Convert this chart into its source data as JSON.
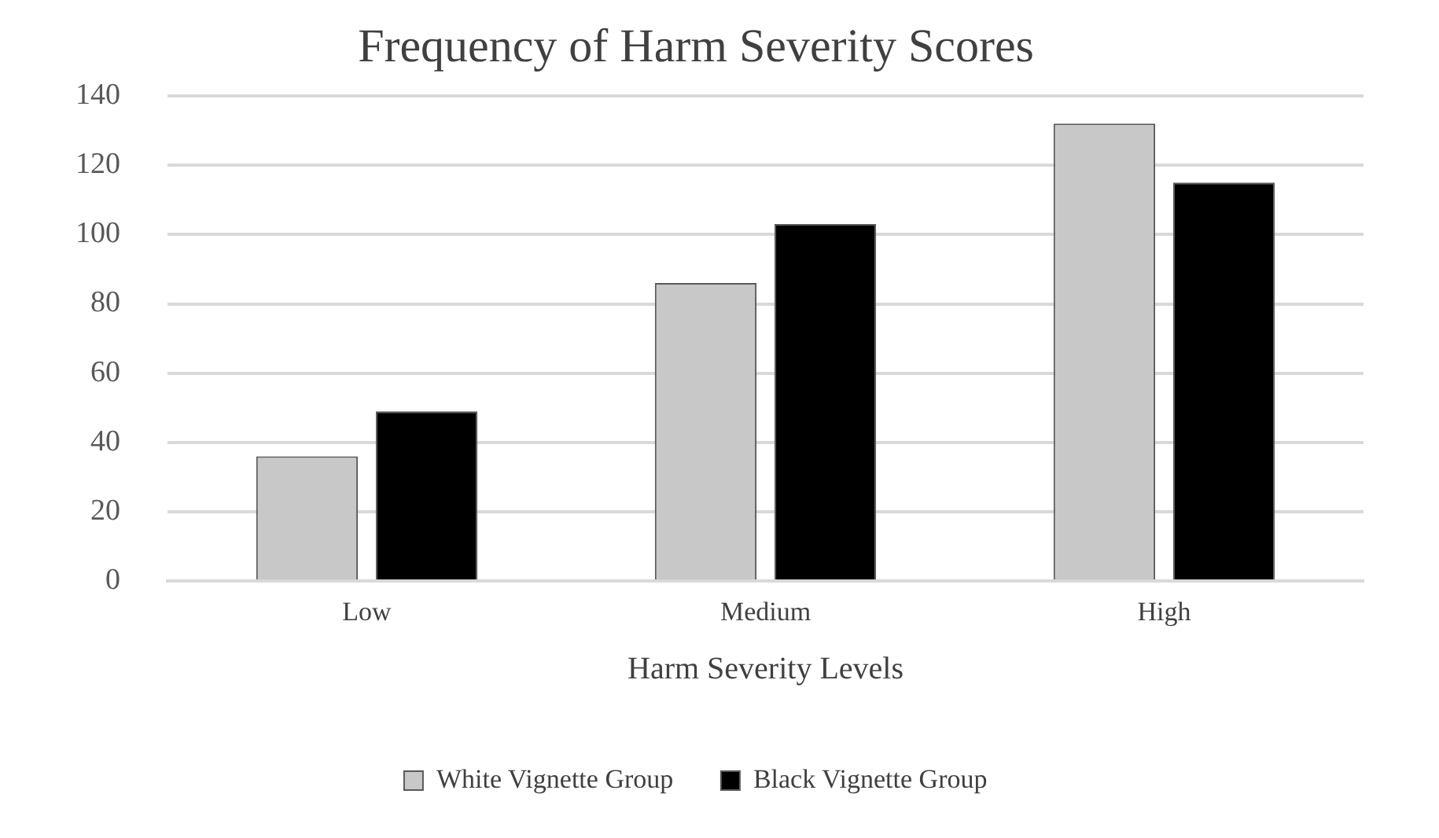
{
  "chart_data": {
    "type": "bar",
    "title": "Frequency of Harm Severity Scores",
    "xlabel": "Harm Severity Levels",
    "categories": [
      "Low",
      "Medium",
      "High"
    ],
    "series": [
      {
        "name": "White Vignette Group",
        "color": "#c8c8c8",
        "values": [
          36,
          86,
          132
        ]
      },
      {
        "name": "Black Vignette Group",
        "color": "#000000",
        "values": [
          49,
          103,
          115
        ]
      }
    ],
    "ylim": [
      0,
      140
    ],
    "yticks": [
      0,
      20,
      40,
      60,
      80,
      100,
      120,
      140
    ],
    "grid": "y",
    "legend": "bottom"
  }
}
